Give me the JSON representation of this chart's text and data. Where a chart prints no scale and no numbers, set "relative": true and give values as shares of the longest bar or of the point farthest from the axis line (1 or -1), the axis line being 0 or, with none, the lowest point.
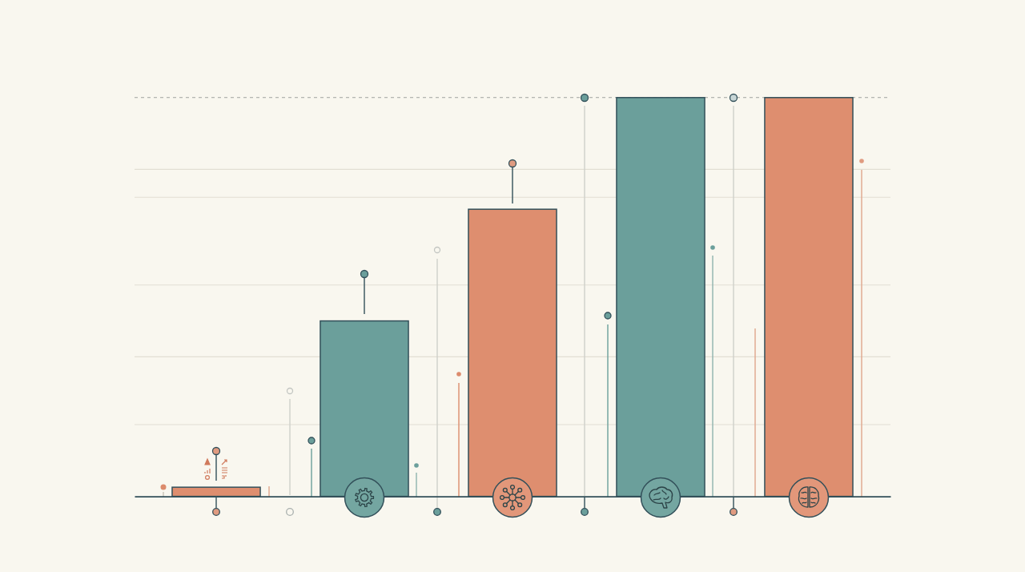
{
  "chart_data": {
    "type": "bar",
    "categories": [
      null,
      null,
      null,
      null,
      null
    ],
    "values": [
      0.023,
      0.44,
      0.72,
      1,
      1
    ],
    "colors": [
      "#de8e6f",
      "#6b9f9b",
      "#de8e6f",
      "#6b9f9b",
      "#de8e6f"
    ],
    "relative": true,
    "ref_lines": [
      {
        "axis": "y",
        "value": 1,
        "color": "#9ea29e",
        "line_style": "dashed"
      },
      {
        "axis": "y",
        "value": 0.82,
        "color": "#e2ded3",
        "line_style": "solid"
      },
      {
        "axis": "y",
        "value": 0.75,
        "color": "#e2ded3",
        "line_style": "solid"
      },
      {
        "axis": "y",
        "value": 0.53,
        "color": "#e2ded3",
        "line_style": "solid"
      },
      {
        "axis": "y",
        "value": 0.35,
        "color": "#e2ded3",
        "line_style": "solid"
      },
      {
        "axis": "y",
        "value": 0.18,
        "color": "#e2ded3",
        "line_style": "solid"
      }
    ]
  }
}
